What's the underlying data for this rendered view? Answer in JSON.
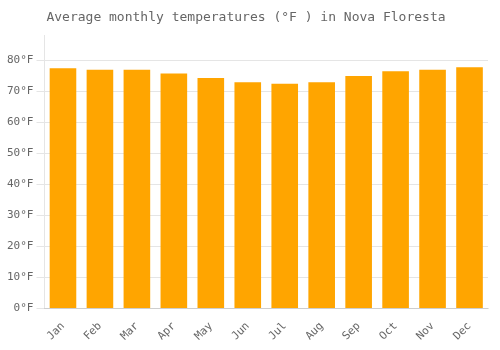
{
  "chart_data": {
    "type": "bar",
    "title": "Average monthly temperatures (°F ) in Nova Floresta",
    "categories": [
      "Jan",
      "Feb",
      "Mar",
      "Apr",
      "May",
      "Jun",
      "Jul",
      "Aug",
      "Sep",
      "Oct",
      "Nov",
      "Dec"
    ],
    "values": [
      77.5,
      77.0,
      77.0,
      75.8,
      74.3,
      73.0,
      72.5,
      73.0,
      75.0,
      76.5,
      77.0,
      77.8
    ],
    "color": "#FFA500",
    "ylim": [
      0,
      88
    ],
    "yticks": [
      {
        "value": 0,
        "label": "0°F"
      },
      {
        "value": 10,
        "label": "10°F"
      },
      {
        "value": 20,
        "label": "20°F"
      },
      {
        "value": 30,
        "label": "30°F"
      },
      {
        "value": 40,
        "label": "40°F"
      },
      {
        "value": 50,
        "label": "50°F"
      },
      {
        "value": 60,
        "label": "60°F"
      },
      {
        "value": 70,
        "label": "70°F"
      },
      {
        "value": 80,
        "label": "80°F"
      }
    ],
    "grid": true
  }
}
